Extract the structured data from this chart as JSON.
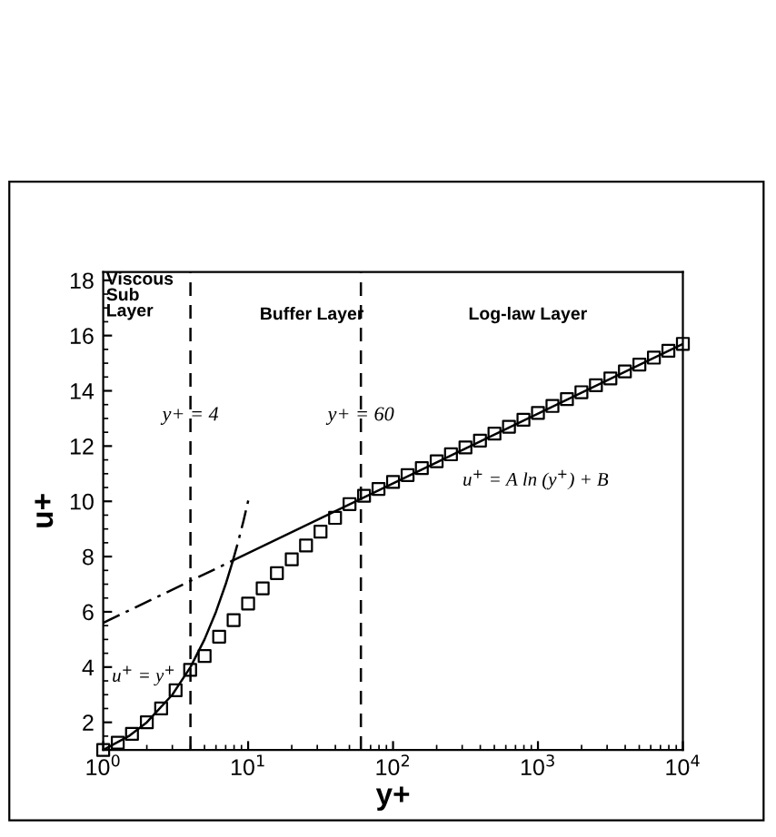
{
  "chart_data": {
    "type": "scatter",
    "xlabel": "y+",
    "ylabel": "u+",
    "log": "x",
    "grid": false,
    "legend": false,
    "xlim": [
      1,
      10000
    ],
    "ylim": [
      1,
      18.3
    ],
    "xticks": [
      {
        "value": 1,
        "label": "10$^{0}$"
      },
      {
        "value": 10,
        "label": "10$^{1}$"
      },
      {
        "value": 100,
        "label": "10$^{2}$"
      },
      {
        "value": 1000,
        "label": "10$^{3}$"
      },
      {
        "value": 10000,
        "label": "10$^{4}$"
      }
    ],
    "yticks": [
      2,
      4,
      6,
      8,
      10,
      12,
      14,
      16,
      18
    ],
    "series": [
      {
        "marker": "square",
        "color": "#000000",
        "x": [
          1,
          1.26,
          1.58,
          2,
          2.51,
          3.16,
          3.98,
          5.01,
          6.31,
          7.94,
          10,
          12.6,
          15.8,
          20,
          25.1,
          31.6,
          39.8,
          50.1,
          63.1,
          79.4,
          100,
          126,
          158,
          200,
          251,
          316,
          398,
          501,
          631,
          794,
          1000,
          1259,
          1585,
          1995,
          2512,
          3162,
          3981,
          5012,
          6310,
          7943,
          10000
        ],
        "values": [
          1,
          1.26,
          1.58,
          2,
          2.5,
          3.16,
          3.9,
          4.4,
          5.1,
          5.7,
          6.3,
          6.85,
          7.4,
          7.9,
          8.4,
          8.9,
          9.4,
          9.9,
          10.2,
          10.45,
          10.7,
          10.95,
          11.2,
          11.45,
          11.7,
          11.95,
          12.2,
          12.45,
          12.7,
          12.95,
          13.2,
          13.45,
          13.7,
          13.95,
          14.2,
          14.45,
          14.7,
          14.95,
          15.2,
          15.45,
          15.7
        ]
      },
      {
        "type": "line",
        "line_style": "solid",
        "color": "#000000",
        "x": [
          1,
          1.5,
          2,
          3,
          4,
          5,
          6,
          7,
          7.8
        ],
        "values": [
          1,
          1.5,
          2,
          3,
          4,
          5,
          6,
          7,
          7.8
        ]
      },
      {
        "type": "line",
        "line_style": "solid",
        "color": "#000000",
        "x": [
          7.8,
          10000
        ],
        "values": [
          7.85,
          15.7
        ]
      },
      {
        "type": "line",
        "line_style": "dashdot",
        "color": "#000000",
        "x": [
          1,
          7.8
        ],
        "values": [
          5.6,
          7.85
        ]
      },
      {
        "type": "line",
        "line_style": "dashdot",
        "color": "#000000",
        "x": [
          7.8,
          8.5,
          9.3,
          10.2
        ],
        "values": [
          7.8,
          8.5,
          9.3,
          10.2
        ]
      }
    ],
    "ref_lines": [
      {
        "axis": "x",
        "value": 4,
        "label": "y+ = 4",
        "line_style": "dashed",
        "color": "#000000"
      },
      {
        "axis": "x",
        "value": 60,
        "label": "y+ = 60",
        "line_style": "dashed",
        "color": "#000000"
      }
    ],
    "annotations": [
      "Viscous\nSub\nLayer",
      "Buffer Layer",
      "Log-law Layer",
      "u$^{+}$ = y$^{+}$",
      "u$^{+}$ = A ln (y$^{+}$) + B"
    ]
  }
}
